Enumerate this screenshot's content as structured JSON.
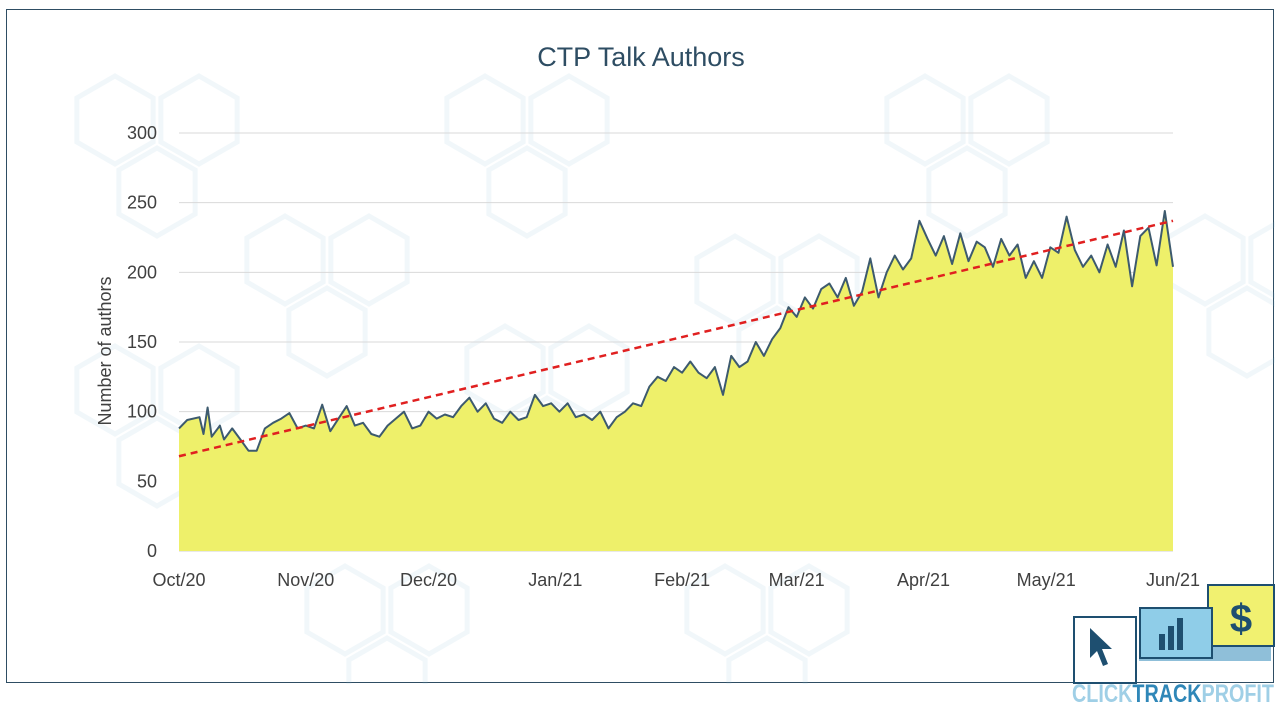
{
  "chart_data": {
    "type": "area",
    "title": "CTP Talk Authors",
    "xlabel": "",
    "ylabel": "Number of authors",
    "ylim": [
      0,
      300
    ],
    "yticks": [
      0,
      50,
      100,
      150,
      200,
      250,
      300
    ],
    "x_range": [
      "2020-10-01",
      "2021-06-01"
    ],
    "x_ticks": [
      {
        "date": "2020-10-01",
        "label": "Oct/20"
      },
      {
        "date": "2020-11-01",
        "label": "Nov/20"
      },
      {
        "date": "2020-12-01",
        "label": "Dec/20"
      },
      {
        "date": "2021-01-01",
        "label": "Jan/21"
      },
      {
        "date": "2021-02-01",
        "label": "Feb/21"
      },
      {
        "date": "2021-03-01",
        "label": "Mar/21"
      },
      {
        "date": "2021-04-01",
        "label": "Apr/21"
      },
      {
        "date": "2021-05-01",
        "label": "May/21"
      },
      {
        "date": "2021-06-01",
        "label": "Jun/21"
      }
    ],
    "grid": true,
    "legend": "none",
    "series": [
      {
        "kind": "area",
        "fill_color": "#eef06a",
        "line_color": "#3d5a6e",
        "points": [
          [
            "2020-10-01",
            0
          ],
          [
            "2020-10-01",
            88
          ],
          [
            "2020-10-03",
            94
          ],
          [
            "2020-10-06",
            96
          ],
          [
            "2020-10-07",
            84
          ],
          [
            "2020-10-08",
            103
          ],
          [
            "2020-10-09",
            82
          ],
          [
            "2020-10-11",
            90
          ],
          [
            "2020-10-12",
            80
          ],
          [
            "2020-10-14",
            88
          ],
          [
            "2020-10-16",
            80
          ],
          [
            "2020-10-18",
            72
          ],
          [
            "2020-10-20",
            72
          ],
          [
            "2020-10-22",
            88
          ],
          [
            "2020-10-24",
            92
          ],
          [
            "2020-10-26",
            95
          ],
          [
            "2020-10-28",
            99
          ],
          [
            "2020-10-30",
            88
          ],
          [
            "2020-11-01",
            90
          ],
          [
            "2020-11-03",
            88
          ],
          [
            "2020-11-05",
            105
          ],
          [
            "2020-11-07",
            86
          ],
          [
            "2020-11-09",
            95
          ],
          [
            "2020-11-11",
            104
          ],
          [
            "2020-11-13",
            90
          ],
          [
            "2020-11-15",
            92
          ],
          [
            "2020-11-17",
            84
          ],
          [
            "2020-11-19",
            82
          ],
          [
            "2020-11-21",
            90
          ],
          [
            "2020-11-23",
            95
          ],
          [
            "2020-11-25",
            100
          ],
          [
            "2020-11-27",
            88
          ],
          [
            "2020-11-29",
            90
          ],
          [
            "2020-12-01",
            100
          ],
          [
            "2020-12-03",
            95
          ],
          [
            "2020-12-05",
            98
          ],
          [
            "2020-12-07",
            96
          ],
          [
            "2020-12-09",
            104
          ],
          [
            "2020-12-11",
            110
          ],
          [
            "2020-12-13",
            100
          ],
          [
            "2020-12-15",
            106
          ],
          [
            "2020-12-17",
            95
          ],
          [
            "2020-12-19",
            92
          ],
          [
            "2020-12-21",
            100
          ],
          [
            "2020-12-23",
            94
          ],
          [
            "2020-12-25",
            96
          ],
          [
            "2020-12-27",
            112
          ],
          [
            "2020-12-29",
            104
          ],
          [
            "2020-12-31",
            106
          ],
          [
            "2021-01-02",
            100
          ],
          [
            "2021-01-04",
            106
          ],
          [
            "2021-01-06",
            96
          ],
          [
            "2021-01-08",
            98
          ],
          [
            "2021-01-10",
            94
          ],
          [
            "2021-01-12",
            100
          ],
          [
            "2021-01-14",
            88
          ],
          [
            "2021-01-16",
            96
          ],
          [
            "2021-01-18",
            100
          ],
          [
            "2021-01-20",
            106
          ],
          [
            "2021-01-22",
            104
          ],
          [
            "2021-01-24",
            118
          ],
          [
            "2021-01-26",
            125
          ],
          [
            "2021-01-28",
            122
          ],
          [
            "2021-01-30",
            132
          ],
          [
            "2021-02-01",
            128
          ],
          [
            "2021-02-03",
            136
          ],
          [
            "2021-02-05",
            128
          ],
          [
            "2021-02-07",
            124
          ],
          [
            "2021-02-09",
            132
          ],
          [
            "2021-02-11",
            112
          ],
          [
            "2021-02-13",
            140
          ],
          [
            "2021-02-15",
            132
          ],
          [
            "2021-02-17",
            136
          ],
          [
            "2021-02-19",
            150
          ],
          [
            "2021-02-21",
            140
          ],
          [
            "2021-02-23",
            152
          ],
          [
            "2021-02-25",
            160
          ],
          [
            "2021-02-27",
            175
          ],
          [
            "2021-03-01",
            168
          ],
          [
            "2021-03-03",
            182
          ],
          [
            "2021-03-05",
            174
          ],
          [
            "2021-03-07",
            188
          ],
          [
            "2021-03-09",
            192
          ],
          [
            "2021-03-11",
            182
          ],
          [
            "2021-03-13",
            196
          ],
          [
            "2021-03-15",
            176
          ],
          [
            "2021-03-17",
            186
          ],
          [
            "2021-03-19",
            210
          ],
          [
            "2021-03-21",
            182
          ],
          [
            "2021-03-23",
            200
          ],
          [
            "2021-03-25",
            212
          ],
          [
            "2021-03-27",
            202
          ],
          [
            "2021-03-29",
            210
          ],
          [
            "2021-03-31",
            237
          ],
          [
            "2021-04-02",
            224
          ],
          [
            "2021-04-04",
            212
          ],
          [
            "2021-04-06",
            226
          ],
          [
            "2021-04-08",
            206
          ],
          [
            "2021-04-10",
            228
          ],
          [
            "2021-04-12",
            208
          ],
          [
            "2021-04-14",
            222
          ],
          [
            "2021-04-16",
            218
          ],
          [
            "2021-04-18",
            204
          ],
          [
            "2021-04-20",
            224
          ],
          [
            "2021-04-22",
            212
          ],
          [
            "2021-04-24",
            220
          ],
          [
            "2021-04-26",
            196
          ],
          [
            "2021-04-28",
            208
          ],
          [
            "2021-04-30",
            196
          ],
          [
            "2021-05-02",
            218
          ],
          [
            "2021-05-04",
            214
          ],
          [
            "2021-05-06",
            240
          ],
          [
            "2021-05-08",
            216
          ],
          [
            "2021-05-10",
            204
          ],
          [
            "2021-05-12",
            212
          ],
          [
            "2021-05-14",
            200
          ],
          [
            "2021-05-16",
            220
          ],
          [
            "2021-05-18",
            204
          ],
          [
            "2021-05-20",
            230
          ],
          [
            "2021-05-22",
            190
          ],
          [
            "2021-05-24",
            226
          ],
          [
            "2021-05-26",
            232
          ],
          [
            "2021-05-28",
            205
          ],
          [
            "2021-05-30",
            244
          ],
          [
            "2021-06-01",
            204
          ],
          [
            "2021-06-01",
            0
          ]
        ]
      },
      {
        "kind": "trendline",
        "line_color": "#e02020",
        "points": [
          [
            "2020-10-01",
            68
          ],
          [
            "2021-06-01",
            237
          ]
        ]
      }
    ]
  },
  "watermark": {
    "icons": [
      "cursor-icon",
      "dollar-icon",
      "bar-chart-icon"
    ],
    "color": "#8fbfd9"
  },
  "brand": {
    "logo_name": "CLICKTRACKPROFIT",
    "colors": {
      "navy": "#1e4f70",
      "blue": "#2f87b8",
      "yellow": "#f1f170"
    }
  }
}
